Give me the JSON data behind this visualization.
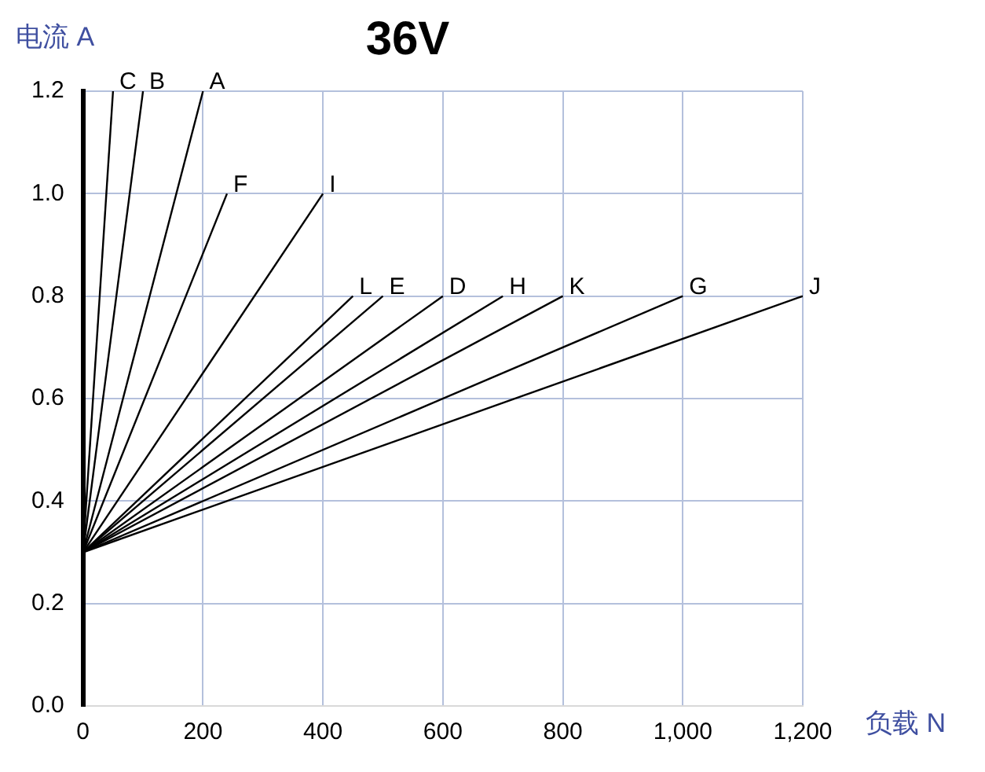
{
  "chart_data": {
    "type": "line",
    "title": "36V",
    "xlabel": "负载 N",
    "ylabel": "电流 A",
    "xlim": [
      0,
      1200
    ],
    "xticks": [
      0,
      200,
      400,
      600,
      800,
      {
        "value": 1000,
        "label": "1,000"
      },
      {
        "value": 1200,
        "label": "1,200"
      }
    ],
    "ylim": [
      0,
      1.2
    ],
    "yticks": [
      {
        "value": 0,
        "label": "0.0"
      },
      {
        "value": 0.2,
        "label": "0.2"
      },
      {
        "value": 0.4,
        "label": "0.4"
      },
      {
        "value": 0.6,
        "label": "0.6"
      },
      {
        "value": 0.8,
        "label": "0.8"
      },
      {
        "value": 1,
        "label": "1.0"
      },
      {
        "value": 1.2,
        "label": "1.2"
      }
    ],
    "grid": true,
    "legend": false,
    "marker": "none",
    "line_style": "solid",
    "series": [
      {
        "name": "C",
        "color": "#000000",
        "x": [
          0,
          50
        ],
        "values": [
          0.3,
          1.2
        ]
      },
      {
        "name": "B",
        "color": "#000000",
        "x": [
          0,
          100
        ],
        "values": [
          0.3,
          1.2
        ]
      },
      {
        "name": "A",
        "color": "#000000",
        "x": [
          0,
          200
        ],
        "values": [
          0.3,
          1.2
        ]
      },
      {
        "name": "F",
        "color": "#000000",
        "x": [
          0,
          240
        ],
        "values": [
          0.3,
          1.0
        ]
      },
      {
        "name": "I",
        "color": "#000000",
        "x": [
          0,
          400
        ],
        "values": [
          0.3,
          1.0
        ]
      },
      {
        "name": "L",
        "color": "#000000",
        "x": [
          0,
          450
        ],
        "values": [
          0.3,
          0.8
        ]
      },
      {
        "name": "E",
        "color": "#000000",
        "x": [
          0,
          500
        ],
        "values": [
          0.3,
          0.8
        ]
      },
      {
        "name": "D",
        "color": "#000000",
        "x": [
          0,
          600
        ],
        "values": [
          0.3,
          0.8
        ]
      },
      {
        "name": "H",
        "color": "#000000",
        "x": [
          0,
          700
        ],
        "values": [
          0.3,
          0.8
        ]
      },
      {
        "name": "K",
        "color": "#000000",
        "x": [
          0,
          800
        ],
        "values": [
          0.3,
          0.8
        ]
      },
      {
        "name": "G",
        "color": "#000000",
        "x": [
          0,
          1000
        ],
        "values": [
          0.3,
          0.8
        ]
      },
      {
        "name": "J",
        "color": "#000000",
        "x": [
          0,
          1200
        ],
        "values": [
          0.3,
          0.8
        ]
      }
    ]
  }
}
